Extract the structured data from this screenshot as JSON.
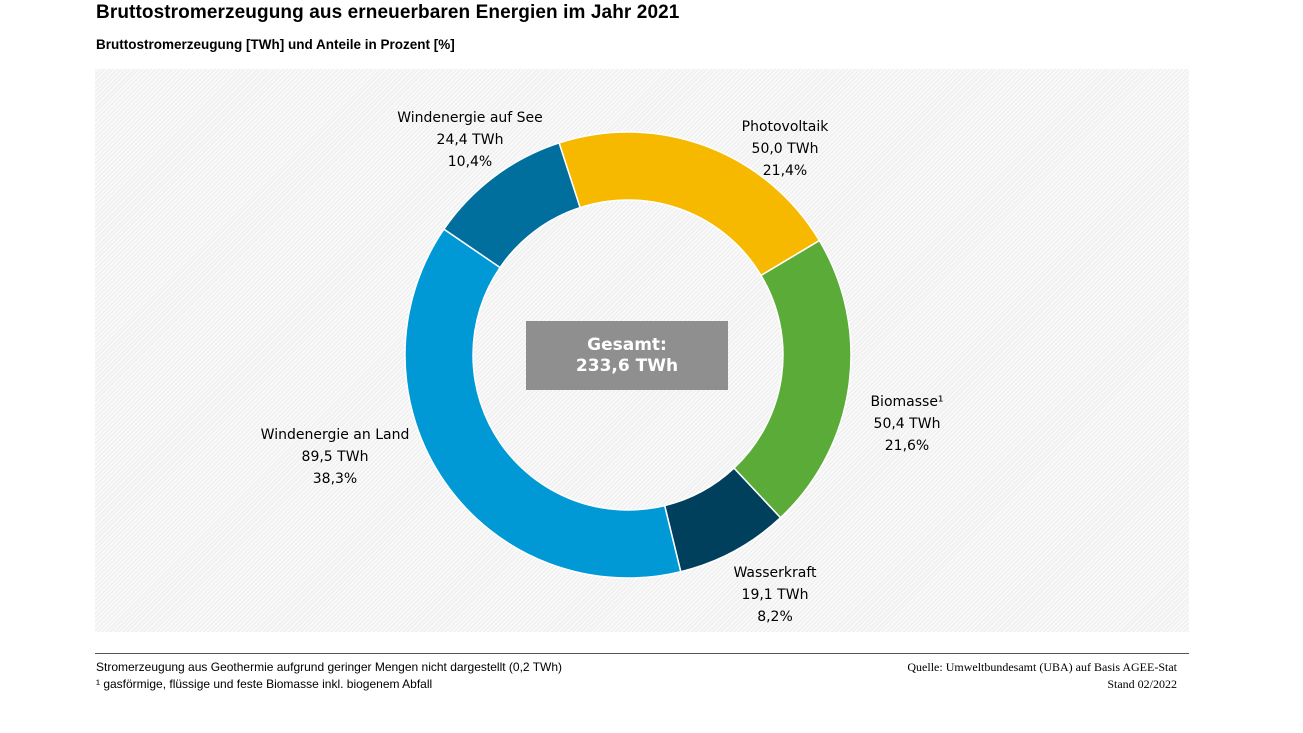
{
  "header": {
    "title": "Bruttostromerzeugung aus erneuerbaren Energien im Jahr 2021",
    "subtitle": "Bruttostromerzeugung  [TWh] und Anteile in Prozent [%]"
  },
  "chart_data": {
    "type": "pie",
    "variant": "donut",
    "unit": "TWh",
    "total_label": "Gesamt:",
    "total_value": "233,6 TWh",
    "total": 233.6,
    "slices": [
      {
        "name": "Photovoltaik",
        "value": 50.0,
        "value_label": "50,0 TWh",
        "percent_label": "21,4%",
        "color": "#f7b900"
      },
      {
        "name": "Biomasse¹",
        "value": 50.4,
        "value_label": "50,4 TWh",
        "percent_label": "21,6%",
        "color": "#5aab37"
      },
      {
        "name": "Wasserkraft",
        "value": 19.1,
        "value_label": "19,1 TWh",
        "percent_label": "8,2%",
        "color": "#00405d"
      },
      {
        "name": "Windenergie an Land",
        "value": 89.5,
        "value_label": "89,5 TWh",
        "percent_label": "38,3%",
        "color": "#0099d5"
      },
      {
        "name": "Windenergie auf See",
        "value": 24.4,
        "value_label": "24,4 TWh",
        "percent_label": "10,4%",
        "color": "#006f9e"
      }
    ]
  },
  "footer": {
    "note1": "Stromerzeugung aus Geothermie aufgrund geringer Mengen nicht dargestellt (0,2 TWh)",
    "note2": "¹ gasförmige, flüssige und feste Biomasse inkl. biogenem Abfall",
    "source": "Quelle:  Umweltbundesamt (UBA) auf Basis AGEE-Stat",
    "date": "Stand 02/2022"
  }
}
